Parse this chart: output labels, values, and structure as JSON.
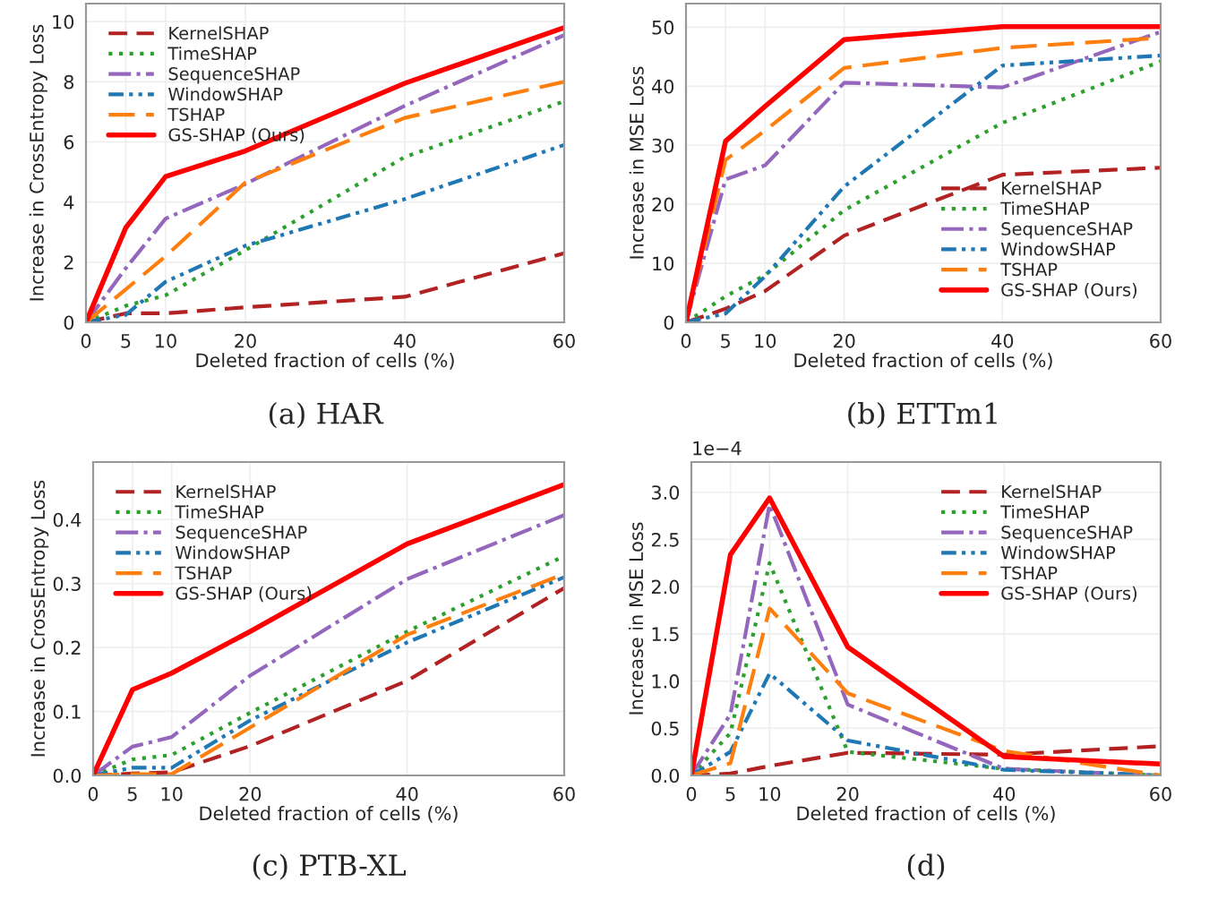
{
  "chart_data": [
    {
      "type": "line",
      "title": "(a) HAR",
      "xlabel": "Deleted fraction of cells (%)",
      "ylabel": "Increase in CrossEntropy Loss",
      "x": [
        0,
        5,
        10,
        20,
        40,
        60
      ],
      "xlim": [
        0,
        60
      ],
      "xticks": [
        0,
        5,
        10,
        20,
        40,
        60
      ],
      "ylim": [
        0,
        10.6
      ],
      "yticks": [
        0,
        2,
        4,
        6,
        8,
        10
      ],
      "grid": true,
      "legend": "top left",
      "series": [
        {
          "name": "KernelSHAP",
          "color": "#b22222",
          "line_style": "dashed",
          "values": [
            0,
            0.3,
            0.3,
            0.5,
            0.85,
            2.3
          ]
        },
        {
          "name": "TimeSHAP",
          "color": "#2ca02c",
          "line_style": "dotted",
          "values": [
            0,
            0.55,
            0.9,
            2.4,
            5.5,
            7.35
          ]
        },
        {
          "name": "SequenceSHAP",
          "color": "#9467bd",
          "line_style": "dashdot",
          "values": [
            0,
            1.8,
            3.45,
            4.6,
            7.2,
            9.55
          ]
        },
        {
          "name": "WindowSHAP",
          "color": "#1f77b4",
          "line_style": "dashdotdot",
          "values": [
            0,
            0.25,
            1.35,
            2.55,
            4.1,
            5.9
          ]
        },
        {
          "name": "TSHAP",
          "color": "#ff7f0e",
          "line_style": "longdash",
          "values": [
            0,
            1.1,
            2.2,
            4.65,
            6.8,
            8.0
          ]
        },
        {
          "name": "GS-SHAP (Ours)",
          "color": "#ff0000",
          "line_style": "solid",
          "values": [
            0,
            3.15,
            4.85,
            5.7,
            7.95,
            9.8
          ]
        }
      ]
    },
    {
      "type": "line",
      "title": "(b) ETTm1",
      "xlabel": "Deleted fraction of cells (%)",
      "ylabel": "Increase in MSE Loss",
      "x": [
        0,
        5,
        10,
        20,
        40,
        60
      ],
      "xlim": [
        0,
        60
      ],
      "xticks": [
        0,
        5,
        10,
        20,
        40,
        60
      ],
      "ylim": [
        0,
        54
      ],
      "yticks": [
        0,
        10,
        20,
        30,
        40,
        50
      ],
      "grid": true,
      "legend": "bottom right",
      "series": [
        {
          "name": "KernelSHAP",
          "color": "#b22222",
          "line_style": "dashed",
          "values": [
            0,
            2.3,
            5.3,
            14.7,
            25,
            26.2
          ]
        },
        {
          "name": "TimeSHAP",
          "color": "#2ca02c",
          "line_style": "dotted",
          "values": [
            0,
            4.4,
            8,
            19,
            33.8,
            44.2
          ]
        },
        {
          "name": "SequenceSHAP",
          "color": "#9467bd",
          "line_style": "dashdot",
          "values": [
            0,
            24.2,
            26.6,
            40.6,
            39.8,
            49.2
          ]
        },
        {
          "name": "WindowSHAP",
          "color": "#1f77b4",
          "line_style": "dashdotdot",
          "values": [
            0,
            1.5,
            7.8,
            23,
            43.5,
            45.2
          ]
        },
        {
          "name": "TSHAP",
          "color": "#ff7f0e",
          "line_style": "longdash",
          "values": [
            0,
            27.5,
            32.5,
            43.1,
            46.5,
            48.2
          ]
        },
        {
          "name": "GS-SHAP (Ours)",
          "color": "#ff0000",
          "line_style": "solid",
          "values": [
            0,
            30.7,
            36.6,
            47.9,
            50.1,
            50.1
          ]
        }
      ]
    },
    {
      "type": "line",
      "title": "(c) PTB-XL",
      "xlabel": "Deleted fraction of cells (%)",
      "ylabel": "Increase in CrossEntropy Loss",
      "x": [
        0,
        5,
        10,
        20,
        40,
        60
      ],
      "xlim": [
        0,
        60
      ],
      "xticks": [
        0,
        5,
        10,
        20,
        40,
        60
      ],
      "ylim": [
        0,
        0.49
      ],
      "yticks": [
        {
          "value": 0,
          "label": "0.0"
        },
        0.1,
        0.2,
        0.3,
        0.4
      ],
      "grid": true,
      "legend": "top left",
      "series": [
        {
          "name": "KernelSHAP",
          "color": "#b22222",
          "line_style": "dashed",
          "values": [
            0,
            0.003,
            0.005,
            0.046,
            0.148,
            0.293
          ]
        },
        {
          "name": "TimeSHAP",
          "color": "#2ca02c",
          "line_style": "dotted",
          "values": [
            0,
            0.025,
            0.032,
            0.098,
            0.225,
            0.343
          ]
        },
        {
          "name": "SequenceSHAP",
          "color": "#9467bd",
          "line_style": "dashdot",
          "values": [
            0,
            0.045,
            0.06,
            0.156,
            0.307,
            0.407
          ]
        },
        {
          "name": "WindowSHAP",
          "color": "#1f77b4",
          "line_style": "dashdotdot",
          "values": [
            0,
            0.012,
            0.012,
            0.086,
            0.208,
            0.31
          ]
        },
        {
          "name": "TSHAP",
          "color": "#ff7f0e",
          "line_style": "longdash",
          "values": [
            0,
            0.002,
            0.002,
            0.075,
            0.22,
            0.315
          ]
        },
        {
          "name": "GS-SHAP (Ours)",
          "color": "#ff0000",
          "line_style": "solid",
          "values": [
            0,
            0.134,
            0.16,
            0.225,
            0.362,
            0.455
          ]
        }
      ]
    },
    {
      "type": "line",
      "title": "(d)",
      "xlabel": "Deleted fraction of cells (%)",
      "ylabel": "Increase in MSE Loss",
      "annotations": [
        "1e−4"
      ],
      "x": [
        0,
        5,
        10,
        20,
        40,
        60
      ],
      "xlim": [
        0,
        60
      ],
      "xticks": [
        0,
        5,
        10,
        20,
        40,
        60
      ],
      "ylim": [
        0,
        3.32
      ],
      "yticks": [
        {
          "value": 0,
          "label": "0.0"
        },
        0.5,
        {
          "value": 1,
          "label": "1.0"
        },
        1.5,
        {
          "value": 2,
          "label": "2.0"
        },
        2.5,
        {
          "value": 3,
          "label": "3.0"
        }
      ],
      "grid": true,
      "legend": "top right",
      "series": [
        {
          "name": "KernelSHAP",
          "color": "#b22222",
          "line_style": "dashed",
          "values": [
            0,
            0.02,
            0.1,
            0.24,
            0.22,
            0.31
          ]
        },
        {
          "name": "TimeSHAP",
          "color": "#2ca02c",
          "line_style": "dotted",
          "values": [
            0,
            0.45,
            2.25,
            0.25,
            0.07,
            0
          ]
        },
        {
          "name": "SequenceSHAP",
          "color": "#9467bd",
          "line_style": "dashdot",
          "values": [
            0,
            0.65,
            2.87,
            0.75,
            0.07,
            0
          ]
        },
        {
          "name": "WindowSHAP",
          "color": "#1f77b4",
          "line_style": "dashdotdot",
          "values": [
            0,
            0.25,
            1.08,
            0.37,
            0.06,
            0
          ]
        },
        {
          "name": "TSHAP",
          "color": "#ff7f0e",
          "line_style": "longdash",
          "values": [
            0,
            0.13,
            1.77,
            0.87,
            0.26,
            0
          ]
        },
        {
          "name": "GS-SHAP (Ours)",
          "color": "#ff0000",
          "line_style": "solid",
          "values": [
            0,
            2.34,
            2.94,
            1.36,
            0.2,
            0.12
          ]
        }
      ]
    }
  ]
}
